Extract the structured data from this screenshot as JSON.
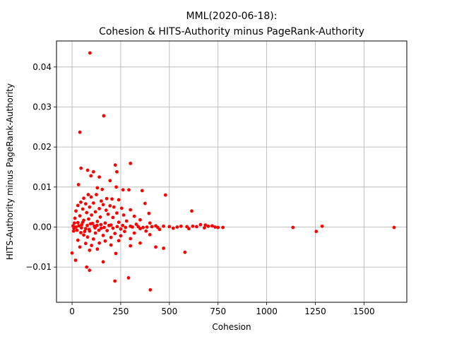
{
  "chart_data": {
    "type": "scatter",
    "title_line1": "MML(2020-06-18):",
    "title_line2": "Cohesion &  HITS-Authority minus PageRank-Authority",
    "xlabel": "Cohesion",
    "ylabel": "HITS-Authority minus PageRank-Authority",
    "xlim": [
      -80,
      1720
    ],
    "ylim": [
      -0.0188,
      0.0465
    ],
    "x_ticks": [
      0,
      250,
      500,
      750,
      1000,
      1250,
      1500
    ],
    "x_tick_labels": [
      "0",
      "250",
      "500",
      "750",
      "1000",
      "1250",
      "1500"
    ],
    "y_ticks": [
      -0.01,
      0.0,
      0.01,
      0.02,
      0.03,
      0.04
    ],
    "y_tick_labels": [
      "−0.01",
      "0.00",
      "0.01",
      "0.02",
      "0.03",
      "0.04"
    ],
    "grid": true,
    "marker_color": "#ff0000",
    "points": [
      [
        92,
        0.0435
      ],
      [
        163,
        0.0278
      ],
      [
        40,
        0.0237
      ],
      [
        300,
        0.0159
      ],
      [
        222,
        0.0155
      ],
      [
        230,
        0.0138
      ],
      [
        46,
        0.0147
      ],
      [
        110,
        0.0138
      ],
      [
        80,
        0.0142
      ],
      [
        97,
        0.0128
      ],
      [
        140,
        0.0125
      ],
      [
        195,
        0.0116
      ],
      [
        33,
        0.0106
      ],
      [
        227,
        0.01
      ],
      [
        130,
        0.0098
      ],
      [
        155,
        0.0094
      ],
      [
        262,
        0.0093
      ],
      [
        292,
        0.0093
      ],
      [
        360,
        0.0091
      ],
      [
        83,
        0.0081
      ],
      [
        125,
        0.0081
      ],
      [
        480,
        0.008
      ],
      [
        98,
        0.0075
      ],
      [
        60,
        0.0072
      ],
      [
        178,
        0.0071
      ],
      [
        205,
        0.007
      ],
      [
        240,
        0.0068
      ],
      [
        150,
        0.0065
      ],
      [
        45,
        0.0062
      ],
      [
        110,
        0.006
      ],
      [
        375,
        0.0059
      ],
      [
        70,
        0.0058
      ],
      [
        160,
        0.0056
      ],
      [
        30,
        0.0054
      ],
      [
        195,
        0.0053
      ],
      [
        215,
        0.005
      ],
      [
        90,
        0.005
      ],
      [
        255,
        0.0047
      ],
      [
        140,
        0.0046
      ],
      [
        300,
        0.0043
      ],
      [
        55,
        0.0045
      ],
      [
        175,
        0.0042
      ],
      [
        615,
        0.004
      ],
      [
        395,
        0.0034
      ],
      [
        20,
        0.004
      ],
      [
        120,
        0.0038
      ],
      [
        75,
        0.0036
      ],
      [
        230,
        0.0035
      ],
      [
        185,
        0.0032
      ],
      [
        265,
        0.003
      ],
      [
        100,
        0.003
      ],
      [
        40,
        0.0028
      ],
      [
        320,
        0.0027
      ],
      [
        145,
        0.0025
      ],
      [
        210,
        0.0024
      ],
      [
        15,
        0.0022
      ],
      [
        85,
        0.002
      ],
      [
        350,
        0.0018
      ],
      [
        60,
        0.0017
      ],
      [
        280,
        0.0015
      ],
      [
        130,
        0.0014
      ],
      [
        240,
        0.0012
      ],
      [
        30,
        0.0011
      ],
      [
        170,
        0.001
      ],
      [
        400,
        0.001
      ],
      [
        95,
        0.0008
      ],
      [
        330,
        0.0007
      ],
      [
        50,
        0.0006
      ],
      [
        200,
        0.0005
      ],
      [
        260,
        0.0004
      ],
      [
        5,
        0.0003
      ],
      [
        115,
        0.0002
      ],
      [
        300,
        0.0002
      ],
      [
        430,
        0.0003
      ],
      [
        470,
        0.0002
      ],
      [
        500,
        0.0001
      ],
      [
        540,
        0.0
      ],
      [
        560,
        0.0002
      ],
      [
        590,
        0.0001
      ],
      [
        620,
        0.0002
      ],
      [
        640,
        0.0001
      ],
      [
        660,
        0.0006
      ],
      [
        685,
        0.0005
      ],
      [
        700,
        0.0002
      ],
      [
        720,
        0.0003
      ],
      [
        735,
        0.0
      ],
      [
        750,
        -0.0001
      ],
      [
        775,
        -0.0001
      ],
      [
        1135,
        -0.0001
      ],
      [
        1255,
        -0.0011
      ],
      [
        1285,
        0.0002
      ],
      [
        1655,
        -0.0001
      ],
      [
        10,
        -0.0003
      ],
      [
        70,
        -0.0004
      ],
      [
        150,
        -0.0003
      ],
      [
        250,
        -0.0005
      ],
      [
        350,
        -0.0004
      ],
      [
        450,
        -0.0006
      ],
      [
        520,
        -0.0003
      ],
      [
        600,
        -0.0004
      ],
      [
        680,
        -0.0002
      ],
      [
        25,
        -0.0008
      ],
      [
        90,
        -0.001
      ],
      [
        180,
        -0.0009
      ],
      [
        270,
        -0.0011
      ],
      [
        380,
        -0.001
      ],
      [
        45,
        -0.0014
      ],
      [
        120,
        -0.0015
      ],
      [
        220,
        -0.0016
      ],
      [
        320,
        -0.0015
      ],
      [
        60,
        -0.002
      ],
      [
        160,
        -0.0021
      ],
      [
        250,
        -0.0022
      ],
      [
        400,
        -0.0019
      ],
      [
        80,
        -0.0025
      ],
      [
        200,
        -0.0026
      ],
      [
        110,
        -0.003
      ],
      [
        300,
        -0.0029
      ],
      [
        30,
        -0.0033
      ],
      [
        170,
        -0.0035
      ],
      [
        240,
        -0.0034
      ],
      [
        140,
        -0.004
      ],
      [
        70,
        -0.0041
      ],
      [
        350,
        -0.004
      ],
      [
        100,
        -0.0046
      ],
      [
        200,
        -0.0045
      ],
      [
        40,
        -0.005
      ],
      [
        430,
        -0.005
      ],
      [
        470,
        -0.0053
      ],
      [
        300,
        -0.0047
      ],
      [
        130,
        -0.0055
      ],
      [
        90,
        -0.0058
      ],
      [
        0,
        -0.0065
      ],
      [
        225,
        -0.0066
      ],
      [
        580,
        -0.0063
      ],
      [
        18,
        -0.0083
      ],
      [
        160,
        -0.0087
      ],
      [
        75,
        -0.01
      ],
      [
        90,
        -0.0108
      ],
      [
        220,
        -0.0135
      ],
      [
        290,
        -0.0127
      ],
      [
        402,
        -0.0157
      ],
      [
        8,
        -0.001
      ],
      [
        12,
        0.001
      ],
      [
        20,
        0.0
      ],
      [
        35,
        0.0003
      ],
      [
        48,
        -0.0002
      ],
      [
        55,
        0.0012
      ],
      [
        65,
        -0.0011
      ],
      [
        78,
        0.0004
      ],
      [
        88,
        -0.0006
      ],
      [
        105,
        0.0009
      ],
      [
        118,
        -0.0002
      ],
      [
        128,
        0.0004
      ],
      [
        138,
        -0.0008
      ],
      [
        148,
        0.0006
      ],
      [
        165,
        -0.0001
      ],
      [
        190,
        0.0004
      ],
      [
        210,
        -0.0003
      ],
      [
        232,
        0.0001
      ],
      [
        275,
        -0.0001
      ],
      [
        310,
        0.0
      ],
      [
        340,
        0.0001
      ],
      [
        365,
        -0.0001
      ],
      [
        385,
        0.0
      ],
      [
        410,
        0.0001
      ],
      [
        440,
        -0.0001
      ]
    ]
  }
}
